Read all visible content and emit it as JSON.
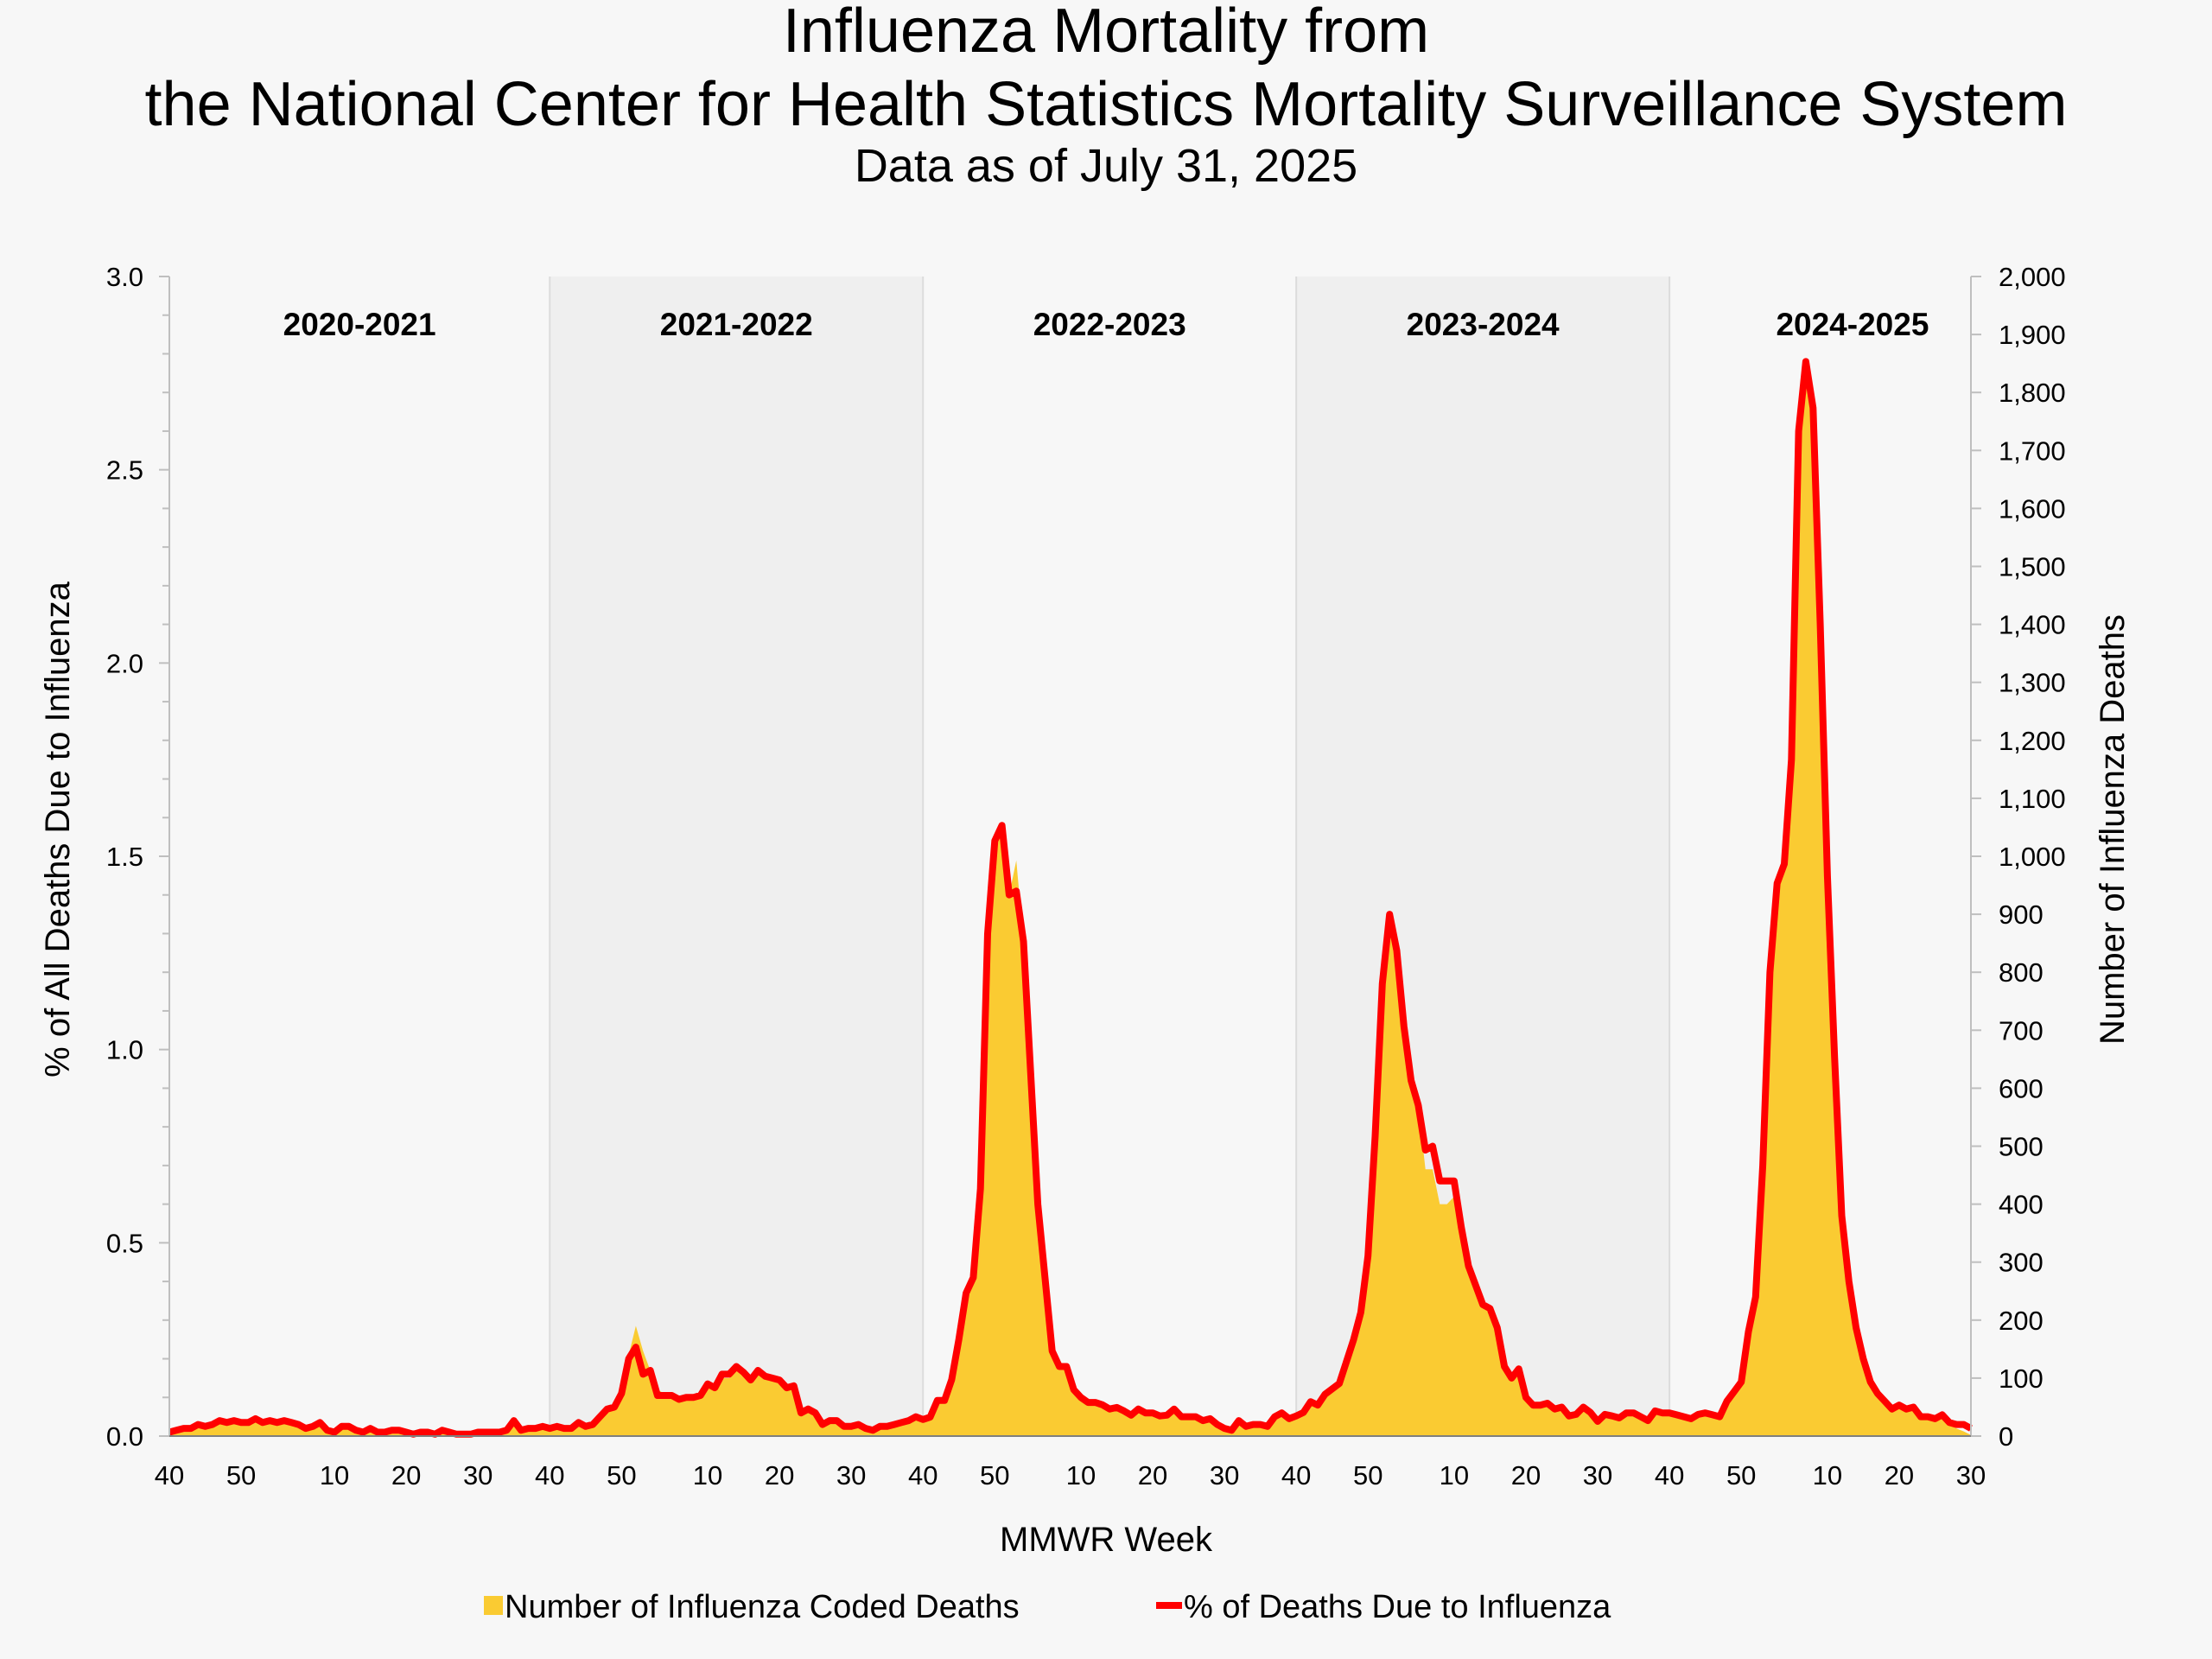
{
  "title_line1": "Influenza Mortality from",
  "title_line2": "the National Center for Health Statistics Mortality Surveillance System",
  "subtitle": "Data as of July 31, 2025",
  "chart_data": {
    "type": "area+line",
    "xlabel": "MMWR Week",
    "ylabel_left": "% of All Deaths Due to Influenza",
    "ylabel_right": "Number of Influenza Deaths",
    "ylim_left": [
      0,
      3.0
    ],
    "ylim_right": [
      0,
      2000
    ],
    "left_tick_labels": [
      "0.0",
      "0.5",
      "1.0",
      "1.5",
      "2.0",
      "2.5",
      "3.0"
    ],
    "right_tick_labels": [
      "0",
      "100",
      "200",
      "300",
      "400",
      "500",
      "600",
      "700",
      "800",
      "900",
      "1,000",
      "1,100",
      "1,200",
      "1,300",
      "1,400",
      "1,500",
      "1,600",
      "1,700",
      "1,800",
      "1,900",
      "2,000"
    ],
    "legend": {
      "position": "bottom",
      "area_label": "Number of Influenza Coded Deaths",
      "line_label": "% of Deaths Due to Influenza"
    },
    "colors": {
      "area": "#FACB32",
      "line": "#FF0000",
      "shaded_season": "#EFEFEF",
      "background": "#F7F7F7"
    },
    "seasons": [
      {
        "label": "2020-2021",
        "shaded": false,
        "week_ranges": [
          [
            40,
            53
          ],
          [
            1,
            39
          ]
        ],
        "x_ticks": [
          "40",
          "50",
          "10",
          "20",
          "30"
        ],
        "pct": [
          0.01,
          0.015,
          0.02,
          0.02,
          0.03,
          0.025,
          0.03,
          0.04,
          0.035,
          0.04,
          0.035,
          0.035,
          0.045,
          0.035,
          0.04,
          0.035,
          0.04,
          0.035,
          0.03,
          0.02,
          0.025,
          0.035,
          0.015,
          0.01,
          0.025,
          0.025,
          0.015,
          0.01,
          0.02,
          0.01,
          0.01,
          0.015,
          0.015,
          0.01,
          0.005,
          0.01,
          0.01,
          0.005,
          0.015,
          0.01,
          0.005,
          0.005,
          0.005,
          0.01,
          0.01,
          0.01,
          0.01,
          0.015,
          0.04,
          0.015,
          0.02,
          0.02,
          0.025
        ],
        "deaths": [
          7,
          10,
          13,
          13,
          20,
          17,
          20,
          27,
          23,
          27,
          23,
          23,
          30,
          23,
          27,
          23,
          27,
          23,
          20,
          13,
          17,
          23,
          10,
          7,
          17,
          17,
          10,
          7,
          13,
          7,
          7,
          10,
          10,
          7,
          3,
          7,
          7,
          3,
          10,
          7,
          3,
          3,
          3,
          7,
          7,
          7,
          7,
          10,
          27,
          10,
          13,
          13,
          17
        ]
      },
      {
        "label": "2021-2022",
        "shaded": true,
        "week_ranges": [
          [
            40,
            52
          ],
          [
            1,
            39
          ]
        ],
        "x_ticks": [
          "40",
          "50",
          "10",
          "20",
          "30"
        ],
        "pct": [
          0.02,
          0.025,
          0.02,
          0.02,
          0.035,
          0.025,
          0.03,
          0.05,
          0.07,
          0.075,
          0.11,
          0.2,
          0.23,
          0.16,
          0.17,
          0.105,
          0.105,
          0.105,
          0.095,
          0.1,
          0.1,
          0.105,
          0.135,
          0.125,
          0.16,
          0.16,
          0.18,
          0.165,
          0.145,
          0.17,
          0.155,
          0.15,
          0.145,
          0.125,
          0.13,
          0.06,
          0.07,
          0.06,
          0.03,
          0.04,
          0.04,
          0.025,
          0.025,
          0.03,
          0.02,
          0.015,
          0.025,
          0.025,
          0.03,
          0.035,
          0.04,
          0.05
        ],
        "deaths": [
          13,
          17,
          13,
          13,
          23,
          17,
          20,
          33,
          47,
          50,
          73,
          140,
          190,
          147,
          113,
          80,
          73,
          70,
          63,
          67,
          67,
          70,
          90,
          83,
          100,
          100,
          113,
          103,
          93,
          107,
          97,
          97,
          93,
          80,
          83,
          40,
          47,
          40,
          20,
          27,
          27,
          17,
          17,
          20,
          13,
          10,
          17,
          17,
          20,
          23,
          27,
          33
        ]
      },
      {
        "label": "2022-2023",
        "shaded": false,
        "week_ranges": [
          [
            40,
            52
          ],
          [
            1,
            39
          ]
        ],
        "x_ticks": [
          "40",
          "50",
          "10",
          "20",
          "30"
        ],
        "pct": [
          0.043,
          0.049,
          0.092,
          0.092,
          0.146,
          0.25,
          0.37,
          0.41,
          0.64,
          1.3,
          1.54,
          1.58,
          1.4,
          1.41,
          1.28,
          0.94,
          0.6,
          0.41,
          0.22,
          0.18,
          0.18,
          0.12,
          0.1,
          0.087,
          0.087,
          0.081,
          0.07,
          0.074,
          0.065,
          0.054,
          0.07,
          0.06,
          0.06,
          0.052,
          0.054,
          0.07,
          0.05,
          0.05,
          0.05,
          0.04,
          0.045,
          0.03,
          0.02,
          0.015,
          0.04,
          0.025,
          0.03,
          0.03,
          0.025,
          0.05,
          0.06,
          0.045
        ],
        "deaths": [
          29,
          33,
          61,
          61,
          97,
          167,
          247,
          273,
          427,
          867,
          1027,
          1053,
          933,
          993,
          853,
          627,
          400,
          273,
          147,
          120,
          120,
          80,
          67,
          58,
          58,
          54,
          47,
          49,
          43,
          36,
          47,
          40,
          40,
          35,
          36,
          47,
          33,
          33,
          33,
          27,
          30,
          20,
          13,
          10,
          27,
          17,
          20,
          20,
          17,
          33,
          40,
          30
        ]
      },
      {
        "label": "2023-2024",
        "shaded": true,
        "week_ranges": [
          [
            40,
            52
          ],
          [
            1,
            39
          ]
        ],
        "x_ticks": [
          "40",
          "50",
          "10",
          "20",
          "30"
        ],
        "pct": [
          0.052,
          0.061,
          0.089,
          0.08,
          0.108,
          0.122,
          0.136,
          0.193,
          0.25,
          0.32,
          0.466,
          0.776,
          1.17,
          1.35,
          1.256,
          1.06,
          0.92,
          0.856,
          0.74,
          0.75,
          0.66,
          0.66,
          0.66,
          0.54,
          0.44,
          0.39,
          0.34,
          0.33,
          0.28,
          0.18,
          0.15,
          0.174,
          0.1,
          0.08,
          0.08,
          0.085,
          0.07,
          0.075,
          0.052,
          0.056,
          0.075,
          0.061,
          0.038,
          0.056,
          0.052,
          0.047,
          0.06,
          0.06,
          0.05,
          0.04,
          0.065,
          0.06
        ],
        "deaths": [
          35,
          41,
          59,
          53,
          72,
          81,
          91,
          129,
          167,
          213,
          311,
          517,
          780,
          900,
          837,
          707,
          613,
          571,
          460,
          460,
          400,
          400,
          413,
          360,
          293,
          260,
          227,
          220,
          187,
          120,
          100,
          116,
          67,
          53,
          53,
          57,
          47,
          50,
          35,
          37,
          50,
          41,
          25,
          37,
          35,
          31,
          40,
          40,
          33,
          27,
          43,
          40
        ]
      },
      {
        "label": "2024-2025",
        "shaded": false,
        "week_ranges": [
          [
            40,
            52
          ],
          [
            1,
            30
          ]
        ],
        "x_ticks": [
          "40",
          "50",
          "10",
          "20",
          "30"
        ],
        "pct": [
          0.06,
          0.055,
          0.05,
          0.045,
          0.056,
          0.06,
          0.055,
          0.05,
          0.09,
          0.115,
          0.14,
          0.27,
          0.36,
          0.7,
          1.2,
          1.43,
          1.48,
          1.75,
          2.6,
          2.78,
          2.66,
          2.1,
          1.45,
          0.98,
          0.57,
          0.4,
          0.28,
          0.2,
          0.14,
          0.11,
          0.09,
          0.07,
          0.08,
          0.07,
          0.075,
          0.05,
          0.05,
          0.045,
          0.055,
          0.035,
          0.03,
          0.03,
          0.02
        ],
        "deaths": [
          40,
          37,
          33,
          30,
          37,
          40,
          37,
          33,
          60,
          77,
          93,
          180,
          240,
          467,
          800,
          953,
          987,
          1167,
          1733,
          1853,
          1780,
          1400,
          967,
          653,
          380,
          267,
          187,
          133,
          93,
          73,
          60,
          47,
          53,
          47,
          50,
          33,
          33,
          27,
          30,
          20,
          13,
          8,
          2
        ]
      }
    ]
  }
}
